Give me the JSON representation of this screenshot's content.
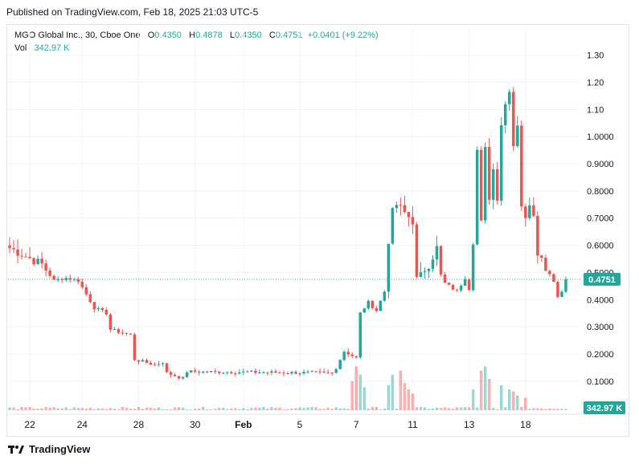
{
  "published": "Published on TradingView.com, Feb 18, 2025 21:03 UTC-5",
  "legend": {
    "symbol": "MGO Global Inc., 30, Cboe One",
    "o_label": "O",
    "o": "0.4350",
    "h_label": "H",
    "h": "0.4878",
    "l_label": "L",
    "l": "0.4350",
    "c_label": "C",
    "c": "0.4751",
    "change": "+0.0401 (+9.22%)",
    "vol_label": "Vol",
    "vol": "342.97 K"
  },
  "brand": "TradingView",
  "colors": {
    "up": "#26a69a",
    "down": "#ef5350",
    "grid": "#f0f3fa",
    "text": "#131722"
  },
  "chart_data": {
    "type": "candlestick",
    "y_ticks": [
      "1.30",
      "1.20",
      "1.10",
      "1.0000",
      "0.9000",
      "0.8000",
      "0.7000",
      "0.6000",
      "0.5000",
      "0.4000",
      "0.3000",
      "0.2000",
      "0.1000"
    ],
    "y_tick_values": [
      1.3,
      1.2,
      1.1,
      1.0,
      0.9,
      0.8,
      0.7,
      0.6,
      0.5,
      0.4,
      0.3,
      0.2,
      0.1
    ],
    "ylim": [
      -0.01,
      1.37
    ],
    "x_ticks": [
      "22",
      "24",
      "28",
      "30",
      "Feb",
      "5",
      "7",
      "11",
      "13",
      "18"
    ],
    "x_tick_index": [
      5,
      18,
      32,
      46,
      58,
      72,
      86,
      100,
      114,
      128
    ],
    "last_price": 0.4751,
    "last_price_label": "0.4751",
    "last_volume_label": "342.97 K",
    "segments": [
      [
        0,
        0.59
      ],
      [
        8,
        0.53
      ],
      [
        11,
        0.47
      ],
      [
        14,
        0.48
      ],
      [
        17,
        0.47
      ],
      [
        21,
        0.37
      ],
      [
        24,
        0.35
      ],
      [
        25,
        0.29
      ],
      [
        30,
        0.27
      ],
      [
        31,
        0.18
      ],
      [
        36,
        0.16
      ],
      [
        38,
        0.17
      ],
      [
        39,
        0.13
      ],
      [
        43,
        0.11
      ],
      [
        44,
        0.135
      ],
      [
        80,
        0.13
      ],
      [
        81,
        0.15
      ],
      [
        83,
        0.21
      ],
      [
        86,
        0.185
      ],
      [
        87,
        0.35
      ],
      [
        89,
        0.39
      ],
      [
        91,
        0.36
      ],
      [
        93,
        0.43
      ],
      [
        94,
        0.62
      ],
      [
        95,
        0.72
      ],
      [
        96,
        0.75
      ],
      [
        100,
        0.69
      ],
      [
        101,
        0.48
      ],
      [
        104,
        0.53
      ],
      [
        106,
        0.59
      ],
      [
        107,
        0.49
      ],
      [
        108,
        0.46
      ],
      [
        111,
        0.43
      ],
      [
        113,
        0.48
      ],
      [
        114,
        0.44
      ],
      [
        115,
        0.62
      ],
      [
        116,
        0.95
      ],
      [
        117,
        0.68
      ],
      [
        118,
        0.95
      ],
      [
        119,
        0.78
      ],
      [
        120,
        0.88
      ],
      [
        121,
        0.78
      ],
      [
        122,
        1.05
      ],
      [
        123,
        1.12
      ],
      [
        124,
        1.18
      ],
      [
        125,
        0.97
      ],
      [
        126,
        1.05
      ],
      [
        127,
        0.75
      ],
      [
        128,
        0.69
      ],
      [
        129,
        0.76
      ],
      [
        130,
        0.72
      ],
      [
        131,
        0.58
      ],
      [
        133,
        0.52
      ],
      [
        135,
        0.47
      ],
      [
        136,
        0.41
      ],
      [
        137,
        0.43
      ],
      [
        138,
        0.4751
      ]
    ],
    "volume_spikes": [
      [
        85,
        0.14
      ],
      [
        86,
        0.21
      ],
      [
        87,
        0.17
      ],
      [
        88,
        0.11
      ],
      [
        94,
        0.12
      ],
      [
        95,
        0.17
      ],
      [
        97,
        0.19
      ],
      [
        98,
        0.13
      ],
      [
        99,
        0.1
      ],
      [
        100,
        0.08
      ],
      [
        115,
        0.1
      ],
      [
        117,
        0.19
      ],
      [
        118,
        0.21
      ],
      [
        119,
        0.15
      ],
      [
        122,
        0.12
      ],
      [
        124,
        0.1
      ],
      [
        125,
        0.09
      ],
      [
        126,
        0.07
      ],
      [
        128,
        0.06
      ]
    ]
  }
}
